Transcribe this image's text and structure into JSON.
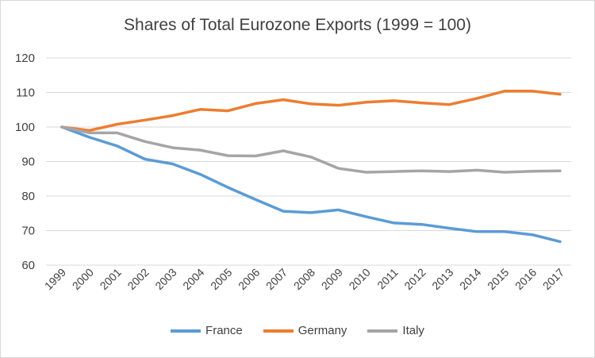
{
  "chart_data": {
    "type": "line",
    "title": "Shares of Total Eurozone Exports (1999 = 100)",
    "xlabel": "",
    "ylabel": "",
    "categories": [
      "1999",
      "2000",
      "2001",
      "2002",
      "2003",
      "2004",
      "2005",
      "2006",
      "2007",
      "2008",
      "2009",
      "2010",
      "2011",
      "2012",
      "2013",
      "2014",
      "2015",
      "2016",
      "2017"
    ],
    "ylim": [
      60,
      120
    ],
    "yticks": [
      60,
      70,
      80,
      90,
      100,
      110,
      120
    ],
    "grid": true,
    "legend_position": "bottom",
    "series": [
      {
        "name": "France",
        "color": "#5b9bd5",
        "values": [
          100,
          97,
          94.5,
          90.7,
          89.3,
          86.3,
          82.5,
          79,
          75.6,
          75.2,
          76,
          74,
          72.2,
          71.8,
          70.7,
          69.7,
          69.7,
          68.8,
          66.8
        ]
      },
      {
        "name": "Germany",
        "color": "#ed7d31",
        "values": [
          100,
          99,
          100.8,
          102,
          103.3,
          105.1,
          104.7,
          106.8,
          107.9,
          106.7,
          106.3,
          107.2,
          107.6,
          107,
          106.5,
          108.3,
          110.4,
          110.4,
          109.5
        ]
      },
      {
        "name": "Italy",
        "color": "#a5a5a5",
        "values": [
          100,
          98.3,
          98.3,
          95.8,
          94,
          93.3,
          91.7,
          91.6,
          93.1,
          91.3,
          88,
          86.9,
          87.1,
          87.3,
          87.1,
          87.5,
          86.9,
          87.2,
          87.3
        ]
      }
    ]
  }
}
